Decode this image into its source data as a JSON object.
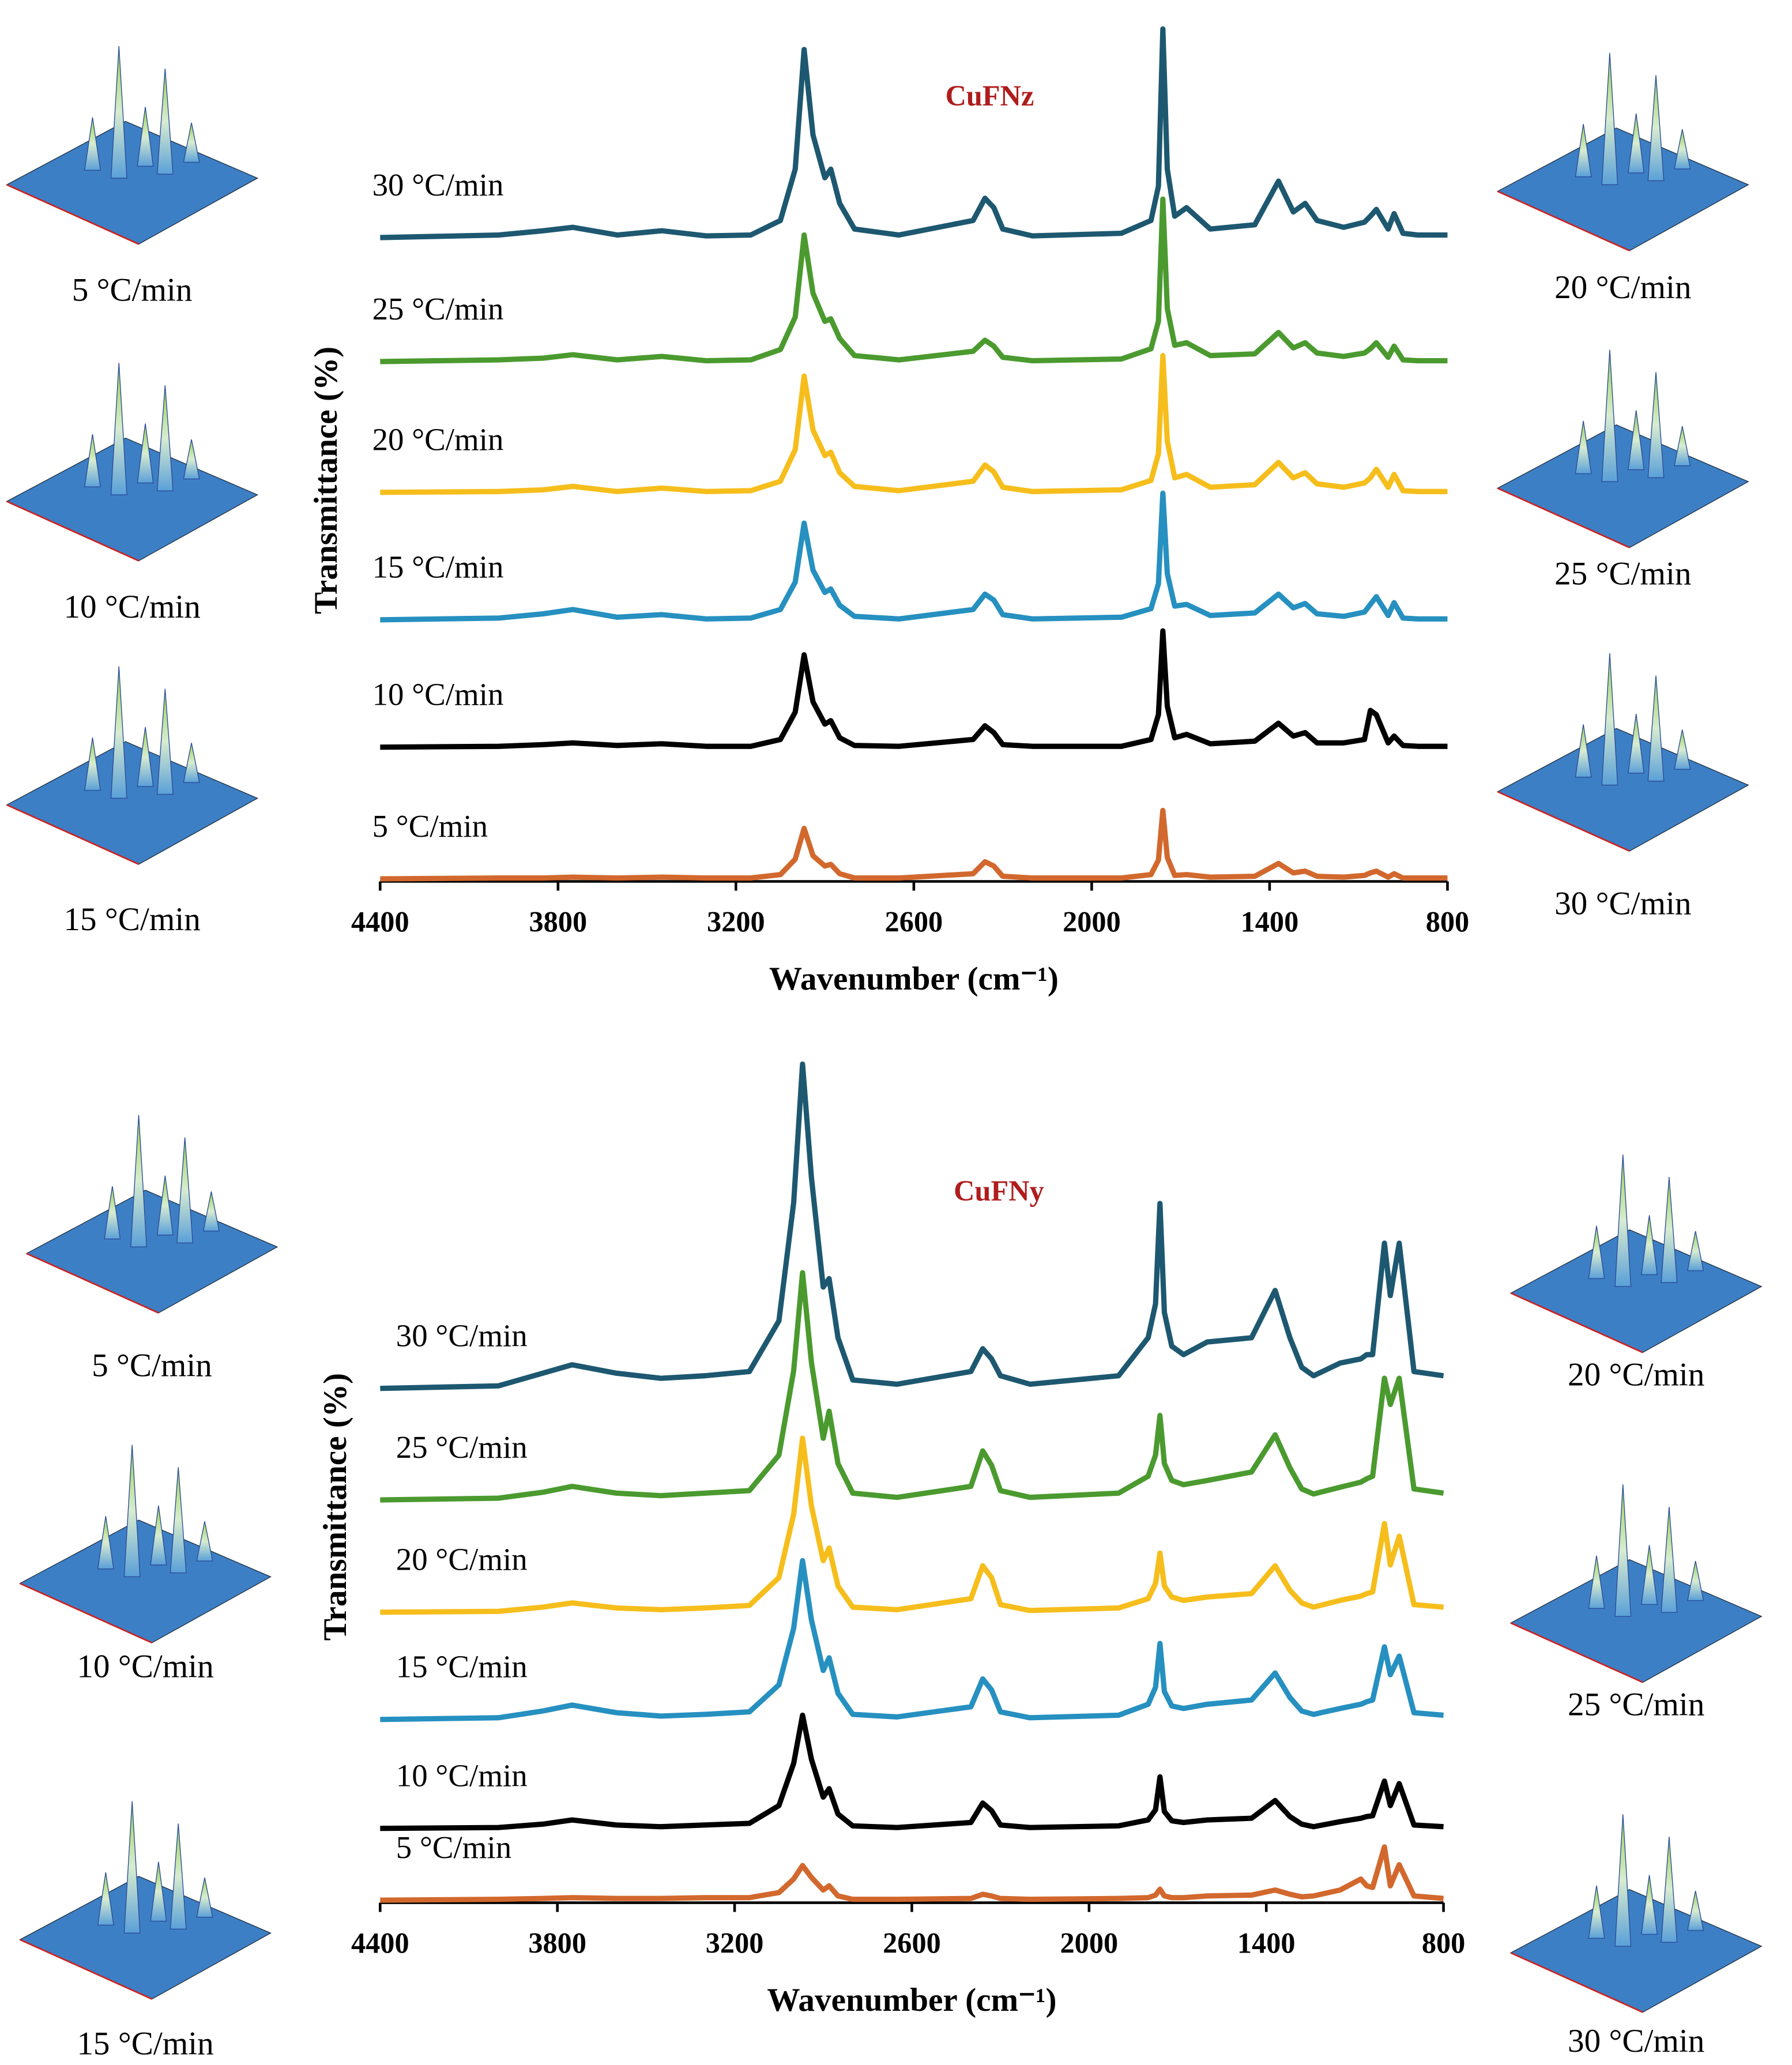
{
  "chart_data": [
    {
      "type": "line",
      "title": "CuFNz",
      "ylabel": "Transmittance (%)",
      "xlabel": "Wavenumber (cm⁻¹)",
      "xlim": [
        4400,
        800
      ],
      "xticks": [
        4400,
        3800,
        3200,
        2600,
        2000,
        1400,
        800
      ],
      "ylim": [
        0,
        100
      ],
      "x": [
        4400,
        4000,
        3850,
        3750,
        3600,
        3450,
        3300,
        3150,
        3050,
        3000,
        2970,
        2940,
        2900,
        2880,
        2850,
        2800,
        2650,
        2400,
        2360,
        2330,
        2300,
        2200,
        1900,
        1800,
        1775,
        1760,
        1745,
        1720,
        1680,
        1600,
        1450,
        1370,
        1320,
        1280,
        1240,
        1150,
        1080,
        1060,
        1040,
        1000,
        980,
        950,
        900,
        800
      ],
      "series": [
        {
          "name": "30 °C/min",
          "color": "#1d5870",
          "values": [
            75.3,
            75.6,
            76.1,
            76.5,
            75.6,
            76.1,
            75.5,
            75.6,
            77.3,
            83.3,
            97.3,
            87.3,
            82.3,
            83.3,
            79.3,
            76.3,
            75.6,
            77.3,
            79.9,
            78.8,
            76.3,
            75.5,
            75.8,
            77.3,
            81.3,
            99.7,
            83.3,
            77.8,
            78.8,
            76.3,
            76.8,
            81.9,
            78.3,
            79.3,
            77.3,
            76.5,
            77.1,
            77.8,
            78.6,
            76.3,
            78.1,
            75.8,
            75.6,
            75.6
          ]
        },
        {
          "name": "25 °C/min",
          "color": "#4b9a2f",
          "values": [
            60.8,
            61.0,
            61.2,
            61.6,
            61.0,
            61.4,
            60.9,
            61.0,
            62.2,
            66.0,
            75.6,
            68.8,
            65.5,
            65.8,
            63.5,
            61.5,
            61.0,
            62.0,
            63.3,
            62.6,
            61.3,
            60.9,
            61.1,
            62.3,
            65.5,
            79.8,
            67.0,
            62.7,
            63.0,
            61.5,
            61.7,
            64.2,
            62.4,
            63.0,
            61.8,
            61.4,
            61.8,
            62.3,
            63.0,
            61.3,
            62.6,
            61.0,
            60.9,
            60.9
          ]
        },
        {
          "name": "20 °C/min",
          "color": "#f6be1c",
          "values": [
            45.5,
            45.6,
            45.8,
            46.2,
            45.6,
            46.0,
            45.6,
            45.7,
            46.8,
            50.5,
            59.1,
            52.8,
            49.8,
            50.2,
            47.8,
            46.2,
            45.7,
            46.8,
            48.7,
            47.9,
            46.1,
            45.6,
            45.8,
            46.9,
            50.0,
            61.5,
            51.5,
            47.2,
            47.6,
            46.1,
            46.4,
            49.0,
            47.2,
            47.8,
            46.5,
            46.1,
            46.6,
            47.2,
            48.2,
            46.1,
            47.6,
            45.7,
            45.6,
            45.6
          ]
        },
        {
          "name": "15 °C/min",
          "color": "#2690c0",
          "values": [
            30.6,
            30.8,
            31.3,
            31.8,
            30.9,
            31.2,
            30.7,
            30.8,
            31.8,
            35.0,
            41.9,
            36.4,
            33.8,
            34.2,
            32.3,
            31.0,
            30.7,
            31.8,
            33.6,
            32.9,
            31.2,
            30.7,
            30.9,
            31.9,
            34.8,
            45.4,
            36.0,
            32.2,
            32.4,
            31.1,
            31.4,
            33.6,
            32.0,
            32.5,
            31.3,
            31.0,
            31.5,
            32.4,
            33.3,
            31.1,
            32.6,
            30.8,
            30.7,
            30.7
          ]
        },
        {
          "name": "10 °C/min",
          "color": "#000000",
          "values": [
            15.7,
            15.8,
            16.0,
            16.2,
            15.9,
            16.1,
            15.8,
            15.8,
            16.6,
            19.8,
            26.5,
            21.0,
            18.4,
            18.8,
            16.8,
            15.9,
            15.8,
            16.6,
            18.2,
            17.4,
            16.0,
            15.8,
            15.8,
            16.6,
            19.5,
            29.3,
            20.5,
            16.8,
            17.2,
            16.1,
            16.4,
            18.5,
            17.0,
            17.4,
            16.2,
            16.2,
            16.6,
            20.0,
            19.5,
            16.2,
            17.0,
            15.9,
            15.8,
            15.8
          ]
        },
        {
          "name": "5 °C/min",
          "color": "#d2682d",
          "values": [
            0.3,
            0.4,
            0.4,
            0.5,
            0.4,
            0.5,
            0.4,
            0.4,
            0.8,
            2.6,
            6.2,
            3.0,
            1.8,
            2.0,
            0.9,
            0.4,
            0.4,
            0.9,
            2.3,
            1.8,
            0.6,
            0.4,
            0.4,
            0.8,
            2.5,
            8.3,
            2.8,
            0.7,
            0.8,
            0.5,
            0.6,
            2.1,
            1.0,
            1.2,
            0.6,
            0.5,
            0.7,
            1.0,
            1.2,
            0.5,
            0.9,
            0.4,
            0.4,
            0.4
          ]
        }
      ]
    },
    {
      "type": "line",
      "title": "CuFNy",
      "ylabel": "Transmittance (%)",
      "xlabel": "Wavenumber (cm⁻¹)",
      "xlim": [
        4400,
        800
      ],
      "xticks": [
        4400,
        3800,
        3200,
        2600,
        2000,
        1400,
        800
      ],
      "ylim": [
        0,
        100
      ],
      "x": [
        4400,
        4000,
        3850,
        3750,
        3600,
        3450,
        3300,
        3150,
        3050,
        3000,
        2970,
        2940,
        2900,
        2880,
        2850,
        2800,
        2650,
        2400,
        2360,
        2330,
        2300,
        2200,
        1900,
        1800,
        1775,
        1760,
        1745,
        1720,
        1680,
        1600,
        1450,
        1370,
        1320,
        1280,
        1240,
        1150,
        1080,
        1060,
        1040,
        1000,
        980,
        950,
        900,
        800
      ],
      "series": [
        {
          "name": "30 °C/min",
          "color": "#1d5870",
          "values": [
            60.9,
            61.2,
            62.7,
            63.7,
            62.7,
            62.1,
            62.4,
            62.9,
            68.9,
            82.9,
            99.3,
            85.9,
            72.9,
            73.9,
            66.9,
            61.9,
            61.4,
            62.9,
            65.6,
            64.4,
            62.4,
            61.4,
            62.4,
            66.9,
            70.9,
            82.8,
            69.9,
            65.9,
            64.9,
            66.4,
            66.9,
            72.5,
            66.9,
            63.4,
            62.4,
            63.9,
            64.4,
            64.9,
            64.9,
            78.1,
            71.9,
            78.1,
            62.9,
            62.4
          ]
        },
        {
          "name": "25 °C/min",
          "color": "#4b9a2f",
          "values": [
            47.7,
            47.9,
            48.6,
            49.3,
            48.5,
            48.2,
            48.5,
            48.8,
            53.0,
            63.0,
            74.6,
            64.0,
            55.0,
            58.2,
            52.0,
            48.5,
            48.0,
            49.3,
            53.5,
            51.8,
            48.8,
            48.0,
            48.5,
            50.5,
            53.0,
            57.7,
            52.0,
            50.0,
            49.5,
            50.0,
            51.0,
            55.4,
            51.5,
            49.0,
            48.4,
            49.2,
            49.8,
            50.2,
            50.5,
            62.1,
            59.0,
            62.1,
            49.0,
            48.5
          ]
        },
        {
          "name": "20 °C/min",
          "color": "#f6be1c",
          "values": [
            34.4,
            34.5,
            35.0,
            35.5,
            34.9,
            34.7,
            34.9,
            35.2,
            38.5,
            46.0,
            55.0,
            47.0,
            40.5,
            42.0,
            37.5,
            35.0,
            34.7,
            36.0,
            39.9,
            38.5,
            35.3,
            34.6,
            34.9,
            36.0,
            37.8,
            41.4,
            37.5,
            36.2,
            35.8,
            36.2,
            36.6,
            39.9,
            37.0,
            35.5,
            35.0,
            35.8,
            36.3,
            36.6,
            36.8,
            44.9,
            40.0,
            43.4,
            35.3,
            35.0
          ]
        },
        {
          "name": "15 °C/min",
          "color": "#2690c0",
          "values": [
            21.7,
            21.9,
            22.7,
            23.4,
            22.5,
            22.1,
            22.3,
            22.6,
            25.8,
            32.5,
            40.5,
            33.5,
            27.5,
            29.0,
            24.8,
            22.3,
            22.0,
            23.2,
            26.5,
            25.2,
            22.6,
            21.9,
            22.2,
            23.5,
            25.5,
            30.7,
            25.0,
            23.3,
            23.0,
            23.5,
            24.0,
            27.2,
            24.3,
            22.7,
            22.3,
            23.0,
            23.5,
            23.8,
            24.0,
            30.3,
            27.0,
            29.2,
            22.5,
            22.2
          ]
        },
        {
          "name": "10 °C/min",
          "color": "#000000",
          "values": [
            8.8,
            8.9,
            9.3,
            9.8,
            9.2,
            9.0,
            9.2,
            9.4,
            11.5,
            16.5,
            22.2,
            17.0,
            12.5,
            13.5,
            10.5,
            9.1,
            8.9,
            9.5,
            11.8,
            10.9,
            9.2,
            8.9,
            9.1,
            9.8,
            11.0,
            14.9,
            10.8,
            9.7,
            9.5,
            9.8,
            10.0,
            12.1,
            10.2,
            9.3,
            9.0,
            9.6,
            10.0,
            10.2,
            10.3,
            14.4,
            11.5,
            14.1,
            9.2,
            9.0
          ]
        },
        {
          "name": "5 °C/min",
          "color": "#d2682d",
          "values": [
            0.3,
            0.4,
            0.5,
            0.6,
            0.5,
            0.5,
            0.6,
            0.6,
            1.2,
            2.8,
            4.4,
            3.0,
            1.5,
            2.0,
            0.8,
            0.4,
            0.4,
            0.5,
            1.0,
            0.8,
            0.5,
            0.4,
            0.5,
            0.6,
            0.9,
            1.6,
            0.8,
            0.6,
            0.6,
            0.8,
            0.9,
            1.5,
            1.0,
            0.7,
            0.8,
            1.5,
            2.8,
            2.0,
            1.8,
            6.6,
            2.0,
            4.5,
            0.8,
            0.5
          ]
        }
      ]
    }
  ],
  "insets": [
    {
      "caption": "5 °C/min"
    },
    {
      "caption": "10 °C/min"
    },
    {
      "caption": "15 °C/min"
    },
    {
      "caption": "20 °C/min"
    },
    {
      "caption": "25 °C/min"
    },
    {
      "caption": "30 °C/min"
    },
    {
      "caption": "5 °C/min"
    },
    {
      "caption": "10 °C/min"
    },
    {
      "caption": "15 °C/min"
    },
    {
      "caption": "20 °C/min"
    },
    {
      "caption": "25 °C/min"
    },
    {
      "caption": "30 °C/min"
    }
  ]
}
